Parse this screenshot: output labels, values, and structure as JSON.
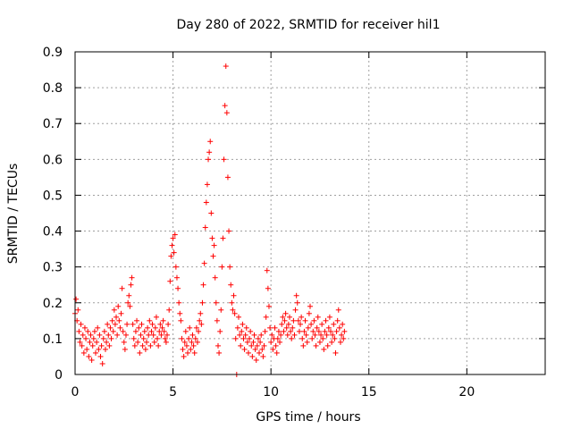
{
  "chart_data": {
    "type": "scatter",
    "title": "Day 280 of 2022, SRMTID for receiver hil1",
    "xlabel": "GPS time / hours",
    "ylabel": "SRMTID / TECUs",
    "xlim": [
      0,
      24
    ],
    "ylim": [
      0,
      0.9
    ],
    "x_ticks": [
      "0",
      "5",
      "10",
      "15",
      "20"
    ],
    "y_ticks": [
      "0",
      "0.1",
      "0.2",
      "0.3",
      "0.4",
      "0.5",
      "0.6",
      "0.7",
      "0.8",
      "0.9"
    ],
    "x_tick_values": [
      0,
      5,
      10,
      15,
      20
    ],
    "y_tick_values": [
      0,
      0.1,
      0.2,
      0.3,
      0.4,
      0.5,
      0.6,
      0.7,
      0.8,
      0.9
    ],
    "grid": true,
    "marker": "+",
    "marker_color": "#ff0000",
    "series": [
      {
        "name": "SRMTID",
        "points": [
          [
            0.0,
            0.17
          ],
          [
            0.05,
            0.21
          ],
          [
            0.1,
            0.15
          ],
          [
            0.15,
            0.18
          ],
          [
            0.2,
            0.12
          ],
          [
            0.25,
            0.09
          ],
          [
            0.3,
            0.14
          ],
          [
            0.35,
            0.08
          ],
          [
            0.4,
            0.11
          ],
          [
            0.45,
            0.06
          ],
          [
            0.5,
            0.13
          ],
          [
            0.55,
            0.1
          ],
          [
            0.6,
            0.07
          ],
          [
            0.65,
            0.12
          ],
          [
            0.7,
            0.05
          ],
          [
            0.75,
            0.09
          ],
          [
            0.8,
            0.11
          ],
          [
            0.85,
            0.04
          ],
          [
            0.9,
            0.08
          ],
          [
            0.95,
            0.1
          ],
          [
            1.0,
            0.12
          ],
          [
            1.05,
            0.06
          ],
          [
            1.1,
            0.09
          ],
          [
            1.15,
            0.13
          ],
          [
            1.2,
            0.07
          ],
          [
            1.25,
            0.11
          ],
          [
            1.3,
            0.05
          ],
          [
            1.35,
            0.08
          ],
          [
            1.4,
            0.03
          ],
          [
            1.45,
            0.1
          ],
          [
            1.5,
            0.12
          ],
          [
            1.55,
            0.07
          ],
          [
            1.6,
            0.09
          ],
          [
            1.65,
            0.14
          ],
          [
            1.7,
            0.11
          ],
          [
            1.75,
            0.08
          ],
          [
            1.8,
            0.13
          ],
          [
            1.85,
            0.1
          ],
          [
            1.9,
            0.15
          ],
          [
            1.95,
            0.12
          ],
          [
            2.0,
            0.18
          ],
          [
            2.05,
            0.14
          ],
          [
            2.1,
            0.16
          ],
          [
            2.15,
            0.11
          ],
          [
            2.2,
            0.19
          ],
          [
            2.25,
            0.15
          ],
          [
            2.3,
            0.13
          ],
          [
            2.35,
            0.17
          ],
          [
            2.4,
            0.24
          ],
          [
            2.45,
            0.12
          ],
          [
            2.5,
            0.09
          ],
          [
            2.55,
            0.07
          ],
          [
            2.6,
            0.11
          ],
          [
            2.65,
            0.14
          ],
          [
            2.7,
            0.2
          ],
          [
            2.75,
            0.22
          ],
          [
            2.8,
            0.19
          ],
          [
            2.85,
            0.25
          ],
          [
            2.9,
            0.27
          ],
          [
            2.95,
            0.14
          ],
          [
            3.0,
            0.1
          ],
          [
            3.05,
            0.08
          ],
          [
            3.1,
            0.12
          ],
          [
            3.15,
            0.15
          ],
          [
            3.2,
            0.09
          ],
          [
            3.25,
            0.13
          ],
          [
            3.3,
            0.06
          ],
          [
            3.35,
            0.11
          ],
          [
            3.4,
            0.14
          ],
          [
            3.45,
            0.08
          ],
          [
            3.5,
            0.1
          ],
          [
            3.55,
            0.12
          ],
          [
            3.6,
            0.07
          ],
          [
            3.65,
            0.09
          ],
          [
            3.7,
            0.13
          ],
          [
            3.75,
            0.11
          ],
          [
            3.8,
            0.15
          ],
          [
            3.85,
            0.08
          ],
          [
            3.9,
            0.12
          ],
          [
            3.95,
            0.14
          ],
          [
            4.0,
            0.11
          ],
          [
            4.05,
            0.09
          ],
          [
            4.1,
            0.13
          ],
          [
            4.15,
            0.16
          ],
          [
            4.2,
            0.1
          ],
          [
            4.25,
            0.08
          ],
          [
            4.3,
            0.12
          ],
          [
            4.35,
            0.14
          ],
          [
            4.4,
            0.11
          ],
          [
            4.45,
            0.13
          ],
          [
            4.5,
            0.15
          ],
          [
            4.55,
            0.12
          ],
          [
            4.6,
            0.1
          ],
          [
            4.65,
            0.09
          ],
          [
            4.7,
            0.11
          ],
          [
            4.75,
            0.14
          ],
          [
            4.8,
            0.18
          ],
          [
            4.85,
            0.26
          ],
          [
            4.9,
            0.33
          ],
          [
            4.95,
            0.36
          ],
          [
            5.0,
            0.38
          ],
          [
            5.05,
            0.34
          ],
          [
            5.1,
            0.39
          ],
          [
            5.15,
            0.3
          ],
          [
            5.2,
            0.27
          ],
          [
            5.25,
            0.24
          ],
          [
            5.3,
            0.2
          ],
          [
            5.35,
            0.17
          ],
          [
            5.4,
            0.15
          ],
          [
            5.45,
            0.1
          ],
          [
            5.5,
            0.07
          ],
          [
            5.55,
            0.05
          ],
          [
            5.6,
            0.09
          ],
          [
            5.65,
            0.12
          ],
          [
            5.7,
            0.08
          ],
          [
            5.75,
            0.06
          ],
          [
            5.8,
            0.1
          ],
          [
            5.85,
            0.13
          ],
          [
            5.9,
            0.07
          ],
          [
            5.95,
            0.09
          ],
          [
            6.0,
            0.11
          ],
          [
            6.05,
            0.08
          ],
          [
            6.1,
            0.06
          ],
          [
            6.15,
            0.1
          ],
          [
            6.2,
            0.13
          ],
          [
            6.25,
            0.09
          ],
          [
            6.3,
            0.12
          ],
          [
            6.35,
            0.15
          ],
          [
            6.4,
            0.17
          ],
          [
            6.45,
            0.14
          ],
          [
            6.5,
            0.2
          ],
          [
            6.55,
            0.25
          ],
          [
            6.6,
            0.31
          ],
          [
            6.65,
            0.41
          ],
          [
            6.7,
            0.48
          ],
          [
            6.75,
            0.53
          ],
          [
            6.8,
            0.6
          ],
          [
            6.85,
            0.62
          ],
          [
            6.9,
            0.65
          ],
          [
            6.95,
            0.45
          ],
          [
            7.0,
            0.38
          ],
          [
            7.05,
            0.33
          ],
          [
            7.1,
            0.36
          ],
          [
            7.15,
            0.27
          ],
          [
            7.2,
            0.2
          ],
          [
            7.25,
            0.15
          ],
          [
            7.3,
            0.08
          ],
          [
            7.35,
            0.06
          ],
          [
            7.4,
            0.12
          ],
          [
            7.45,
            0.18
          ],
          [
            7.5,
            0.3
          ],
          [
            7.55,
            0.38
          ],
          [
            7.6,
            0.6
          ],
          [
            7.65,
            0.75
          ],
          [
            7.7,
            0.86
          ],
          [
            7.75,
            0.73
          ],
          [
            7.8,
            0.55
          ],
          [
            7.85,
            0.4
          ],
          [
            7.9,
            0.3
          ],
          [
            7.95,
            0.25
          ],
          [
            8.0,
            0.2
          ],
          [
            8.05,
            0.18
          ],
          [
            8.1,
            0.22
          ],
          [
            8.15,
            0.17
          ],
          [
            8.2,
            0.1
          ],
          [
            8.25,
            0.0
          ],
          [
            8.3,
            0.13
          ],
          [
            8.35,
            0.16
          ],
          [
            8.4,
            0.11
          ],
          [
            8.45,
            0.08
          ],
          [
            8.5,
            0.12
          ],
          [
            8.55,
            0.14
          ],
          [
            8.6,
            0.1
          ],
          [
            8.65,
            0.07
          ],
          [
            8.7,
            0.11
          ],
          [
            8.75,
            0.13
          ],
          [
            8.8,
            0.09
          ],
          [
            8.85,
            0.06
          ],
          [
            8.9,
            0.1
          ],
          [
            8.95,
            0.12
          ],
          [
            9.0,
            0.08
          ],
          [
            9.05,
            0.05
          ],
          [
            9.1,
            0.09
          ],
          [
            9.15,
            0.11
          ],
          [
            9.2,
            0.07
          ],
          [
            9.25,
            0.04
          ],
          [
            9.3,
            0.08
          ],
          [
            9.35,
            0.1
          ],
          [
            9.4,
            0.06
          ],
          [
            9.45,
            0.09
          ],
          [
            9.5,
            0.11
          ],
          [
            9.55,
            0.07
          ],
          [
            9.6,
            0.05
          ],
          [
            9.65,
            0.08
          ],
          [
            9.7,
            0.12
          ],
          [
            9.75,
            0.16
          ],
          [
            9.8,
            0.29
          ],
          [
            9.85,
            0.24
          ],
          [
            9.9,
            0.19
          ],
          [
            9.95,
            0.13
          ],
          [
            10.0,
            0.09
          ],
          [
            10.05,
            0.11
          ],
          [
            10.1,
            0.07
          ],
          [
            10.15,
            0.1
          ],
          [
            10.2,
            0.13
          ],
          [
            10.25,
            0.08
          ],
          [
            10.3,
            0.06
          ],
          [
            10.35,
            0.1
          ],
          [
            10.4,
            0.12
          ],
          [
            10.45,
            0.09
          ],
          [
            10.5,
            0.11
          ],
          [
            10.55,
            0.14
          ],
          [
            10.6,
            0.16
          ],
          [
            10.65,
            0.12
          ],
          [
            10.7,
            0.15
          ],
          [
            10.75,
            0.17
          ],
          [
            10.8,
            0.13
          ],
          [
            10.85,
            0.11
          ],
          [
            10.9,
            0.14
          ],
          [
            10.95,
            0.16
          ],
          [
            11.0,
            0.12
          ],
          [
            11.05,
            0.1
          ],
          [
            11.1,
            0.13
          ],
          [
            11.15,
            0.15
          ],
          [
            11.2,
            0.11
          ],
          [
            11.25,
            0.18
          ],
          [
            11.3,
            0.22
          ],
          [
            11.35,
            0.2
          ],
          [
            11.4,
            0.15
          ],
          [
            11.45,
            0.12
          ],
          [
            11.5,
            0.14
          ],
          [
            11.55,
            0.16
          ],
          [
            11.6,
            0.1
          ],
          [
            11.65,
            0.08
          ],
          [
            11.7,
            0.12
          ],
          [
            11.75,
            0.15
          ],
          [
            11.8,
            0.11
          ],
          [
            11.85,
            0.09
          ],
          [
            11.9,
            0.13
          ],
          [
            11.95,
            0.17
          ],
          [
            12.0,
            0.19
          ],
          [
            12.05,
            0.14
          ],
          [
            12.1,
            0.1
          ],
          [
            12.15,
            0.12
          ],
          [
            12.2,
            0.15
          ],
          [
            12.25,
            0.11
          ],
          [
            12.3,
            0.08
          ],
          [
            12.35,
            0.13
          ],
          [
            12.4,
            0.16
          ],
          [
            12.45,
            0.12
          ],
          [
            12.5,
            0.09
          ],
          [
            12.55,
            0.11
          ],
          [
            12.6,
            0.14
          ],
          [
            12.65,
            0.1
          ],
          [
            12.7,
            0.07
          ],
          [
            12.75,
            0.12
          ],
          [
            12.8,
            0.15
          ],
          [
            12.85,
            0.11
          ],
          [
            12.9,
            0.08
          ],
          [
            12.95,
            0.13
          ],
          [
            13.0,
            0.16
          ],
          [
            13.05,
            0.12
          ],
          [
            13.1,
            0.09
          ],
          [
            13.15,
            0.11
          ],
          [
            13.2,
            0.14
          ],
          [
            13.25,
            0.1
          ],
          [
            13.3,
            0.06
          ],
          [
            13.35,
            0.12
          ],
          [
            13.4,
            0.15
          ],
          [
            13.45,
            0.18
          ],
          [
            13.5,
            0.13
          ],
          [
            13.55,
            0.09
          ],
          [
            13.6,
            0.11
          ],
          [
            13.65,
            0.14
          ],
          [
            13.7,
            0.1
          ],
          [
            13.75,
            0.12
          ]
        ]
      }
    ]
  }
}
